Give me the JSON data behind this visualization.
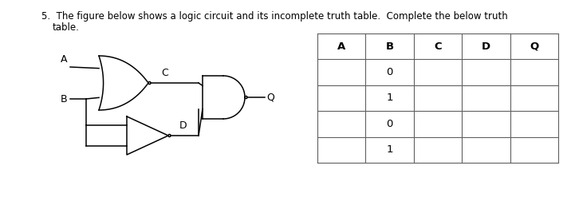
{
  "question_text_line1": "5.  The figure below shows a logic circuit and its incomplete truth table.  Complete the below truth",
  "question_text_line2": "table.",
  "bg_color": "#ffffff",
  "table_headers": [
    "A",
    "B",
    "C",
    "D",
    "Q"
  ],
  "table_rows": [
    [
      "",
      "0",
      "",
      "",
      ""
    ],
    [
      "",
      "1",
      "",
      "",
      ""
    ],
    [
      "",
      "0",
      "",
      "",
      ""
    ],
    [
      "",
      "1",
      "",
      "",
      ""
    ]
  ],
  "font_size_text": 8.5,
  "font_size_table": 9.5,
  "lw": 1.1,
  "bubble_r": 0.006,
  "color": "#000000"
}
